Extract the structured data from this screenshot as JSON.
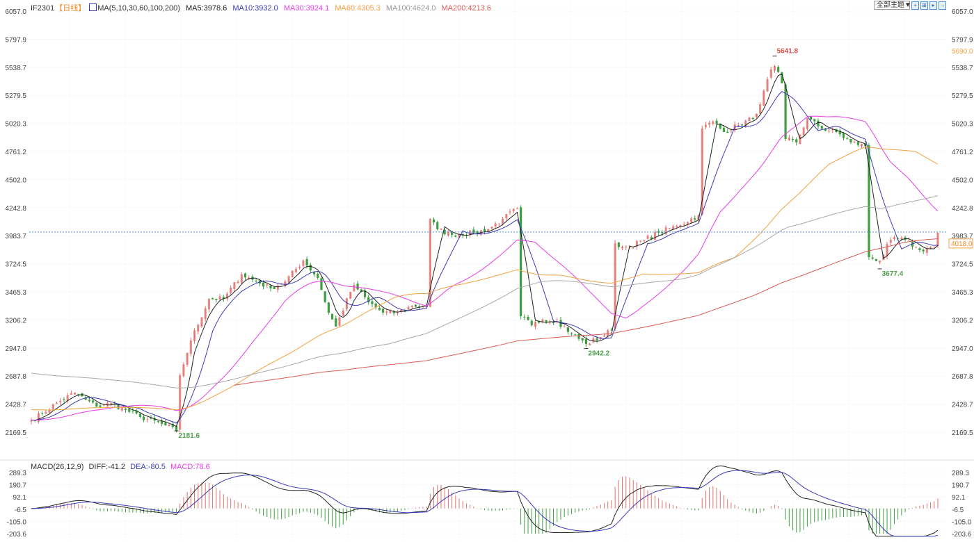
{
  "header": {
    "symbol": "IF2301",
    "period": "【日线】",
    "ma_label": "MA(5,10,30,60,100,200)",
    "ma5": "MA5:3978.6",
    "ma10": "MA10:3932.0",
    "ma30": "MA30:3924.1",
    "ma60": "MA60:4305.3",
    "ma100": "MA100:4624.0",
    "ma200": "MA200:4213.6"
  },
  "toolbar": {
    "theme_select": "全部主题▼",
    "buttons": [
      "zoom-fit-icon",
      "zoom-in-icon",
      "step-icon",
      "go-end-icon"
    ]
  },
  "macd_header": {
    "label": "MACD(26,12,9)",
    "diff": "DIFF:-41.2",
    "dea": "DEA:-80.5",
    "macd": "MACD:78.6"
  },
  "colors": {
    "up": "#e0706c",
    "down": "#3f9e3f",
    "ma5": "#222222",
    "ma10": "#3a3ab8",
    "ma30": "#e83ce8",
    "ma60": "#f4a040",
    "ma100": "#a8a8a8",
    "ma200": "#dc5a55",
    "last_price_line": "#4a90d9"
  },
  "chart_data": {
    "type": "candlestick",
    "price_axis_ticks": [
      "6057.0",
      "5797.9",
      "5538.7",
      "5279.5",
      "5020.3",
      "4761.2",
      "4502.0",
      "4242.8",
      "3983.7",
      "3724.5",
      "3465.3",
      "3206.2",
      "2947.0",
      "2687.8",
      "2428.7",
      "2169.5"
    ],
    "ylim": [
      2169.5,
      6057.0
    ],
    "macd_axis_ticks": [
      "289.3",
      "190.7",
      "92.1",
      "-6.5",
      "-105.0",
      "-203.6"
    ],
    "macd_ylim": [
      -203.6,
      289.3
    ],
    "last_price": "4018.0",
    "right_marker": "5690.0",
    "annotations": [
      {
        "text": "5641.8",
        "type": "high",
        "bar": 205,
        "price": 5641.8
      },
      {
        "text": "2181.6",
        "type": "low",
        "bar": 40,
        "price": 2181.6
      },
      {
        "text": "2942.2",
        "type": "low",
        "bar": 153,
        "price": 2942.2
      },
      {
        "text": "3677.4",
        "type": "low",
        "bar": 234,
        "price": 3677.4
      }
    ],
    "bar_count": 251,
    "close_waypoints": [
      [
        0,
        2279
      ],
      [
        3,
        2343
      ],
      [
        7,
        2439
      ],
      [
        12,
        2535
      ],
      [
        15,
        2471
      ],
      [
        18,
        2407
      ],
      [
        22,
        2439
      ],
      [
        26,
        2375
      ],
      [
        30,
        2311
      ],
      [
        36,
        2246
      ],
      [
        40,
        2182
      ],
      [
        41,
        2695
      ],
      [
        44,
        3016
      ],
      [
        49,
        3401
      ],
      [
        53,
        3401
      ],
      [
        58,
        3626
      ],
      [
        62,
        3562
      ],
      [
        66,
        3497
      ],
      [
        70,
        3562
      ],
      [
        75,
        3754
      ],
      [
        79,
        3594
      ],
      [
        82,
        3273
      ],
      [
        84,
        3145
      ],
      [
        88,
        3465
      ],
      [
        89,
        3530
      ],
      [
        93,
        3369
      ],
      [
        97,
        3273
      ],
      [
        101,
        3273
      ],
      [
        105,
        3337
      ],
      [
        109,
        3337
      ],
      [
        110,
        4139
      ],
      [
        112,
        4043
      ],
      [
        116,
        3991
      ],
      [
        122,
        4011
      ],
      [
        126,
        4043
      ],
      [
        130,
        4139
      ],
      [
        134,
        4235
      ],
      [
        135,
        3241
      ],
      [
        138,
        3157
      ],
      [
        141,
        3209
      ],
      [
        145,
        3196
      ],
      [
        149,
        3080
      ],
      [
        153,
        2984
      ],
      [
        157,
        3048
      ],
      [
        160,
        3112
      ],
      [
        161,
        3914
      ],
      [
        163,
        3882
      ],
      [
        165,
        3882
      ],
      [
        169,
        3946
      ],
      [
        173,
        4011
      ],
      [
        178,
        4075
      ],
      [
        184,
        4171
      ],
      [
        185,
        4973
      ],
      [
        188,
        5037
      ],
      [
        191,
        4941
      ],
      [
        195,
        5005
      ],
      [
        199,
        5069
      ],
      [
        201,
        5197
      ],
      [
        204,
        5518
      ],
      [
        205,
        5550
      ],
      [
        207,
        5390
      ],
      [
        208,
        4877
      ],
      [
        211,
        4845
      ],
      [
        214,
        5069
      ],
      [
        218,
        4973
      ],
      [
        222,
        4941
      ],
      [
        226,
        4845
      ],
      [
        230,
        4813
      ],
      [
        231,
        3786
      ],
      [
        234,
        3754
      ],
      [
        237,
        3946
      ],
      [
        241,
        3946
      ],
      [
        245,
        3850
      ],
      [
        249,
        3882
      ],
      [
        250,
        4011
      ]
    ],
    "series": [
      {
        "name": "MA5",
        "period": 5
      },
      {
        "name": "MA10",
        "period": 10
      },
      {
        "name": "MA30",
        "period": 30
      },
      {
        "name": "MA60",
        "period": 60
      },
      {
        "name": "MA100",
        "period": 100
      },
      {
        "name": "MA200",
        "period": 200
      }
    ],
    "grid": true
  }
}
